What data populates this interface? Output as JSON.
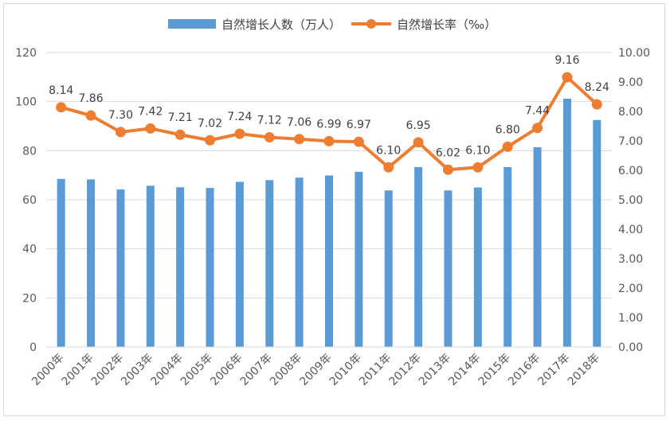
{
  "chart_data": {
    "type": "bar+line",
    "categories": [
      "2000年",
      "2001年",
      "2002年",
      "2003年",
      "2004年",
      "2005年",
      "2006年",
      "2007年",
      "2008年",
      "2009年",
      "2010年",
      "2011年",
      "2012年",
      "2013年",
      "2014年",
      "2015年",
      "2016年",
      "2017年",
      "2018年"
    ],
    "series": [
      {
        "name": "自然增长人数（万人）",
        "type": "bar",
        "axis": "left",
        "color": "#5b9bd5",
        "values": [
          68.5,
          68.3,
          64.2,
          65.7,
          65.1,
          64.8,
          67.3,
          68.0,
          69.0,
          69.9,
          71.4,
          63.8,
          73.3,
          63.8,
          65.0,
          73.3,
          81.4,
          101.2,
          92.5
        ]
      },
      {
        "name": "自然增长率（‰）",
        "type": "line",
        "axis": "right",
        "color": "#ed7d31",
        "values": [
          8.14,
          7.86,
          7.3,
          7.42,
          7.21,
          7.02,
          7.24,
          7.12,
          7.06,
          6.99,
          6.97,
          6.1,
          6.95,
          6.02,
          6.1,
          6.8,
          7.44,
          9.16,
          8.24
        ],
        "labels": [
          "8.14",
          "7.86",
          "7.30",
          "7.42",
          "7.21",
          "7.02",
          "7.24",
          "7.12",
          "7.06",
          "6.99",
          "6.97",
          "6.10",
          "6.95",
          "6.02",
          "6.10",
          "6.80",
          "7.44",
          "9.16",
          "8.24"
        ]
      }
    ],
    "y_left": {
      "ylim": [
        0,
        120
      ],
      "ticks": [
        "0",
        "20",
        "40",
        "60",
        "80",
        "100",
        "120"
      ]
    },
    "y_right": {
      "ylim": [
        0,
        10
      ],
      "ticks": [
        "0.00",
        "1.00",
        "2.00",
        "3.00",
        "4.00",
        "5.00",
        "6.00",
        "7.00",
        "8.00",
        "9.00",
        "10.00"
      ]
    },
    "grid": true,
    "legend_position": "top"
  }
}
